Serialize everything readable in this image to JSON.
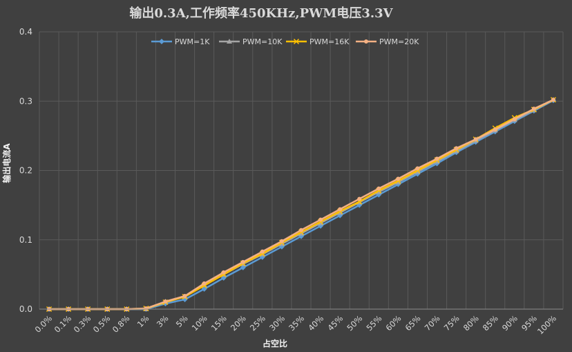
{
  "chart_data": {
    "type": "line",
    "title": "输出0.3A,工作频率450KHz,PWM电压3.3V",
    "xlabel": "占空比",
    "ylabel": "输出电流A",
    "ylim": [
      0,
      0.4
    ],
    "yticks": [
      "0.0",
      "0.1",
      "0.2",
      "0.3",
      "0.4"
    ],
    "grid": true,
    "legend_position": "top",
    "categories": [
      "0.0%",
      "0.1%",
      "0.3%",
      "0.5%",
      "0.8%",
      "1%",
      "3%",
      "5%",
      "10%",
      "15%",
      "20%",
      "25%",
      "30%",
      "35%",
      "40%",
      "45%",
      "50%",
      "55%",
      "60%",
      "65%",
      "70%",
      "75%",
      "80%",
      "85%",
      "90%",
      "95%",
      "100%"
    ],
    "series": [
      {
        "name": "PWM=1K",
        "color": "#5b9bd5",
        "marker": "diamond",
        "values": [
          0.0,
          0.0,
          0.0,
          0.0,
          0.0,
          0.0,
          0.008,
          0.014,
          0.029,
          0.045,
          0.06,
          0.075,
          0.09,
          0.105,
          0.12,
          0.135,
          0.15,
          0.165,
          0.18,
          0.195,
          0.21,
          0.226,
          0.241,
          0.256,
          0.271,
          0.286,
          0.301
        ]
      },
      {
        "name": "PWM=10K",
        "color": "#a5a5a5",
        "marker": "triangle",
        "values": [
          0.0,
          0.0,
          0.0,
          0.0,
          0.0,
          0.0,
          0.011,
          0.018,
          0.035,
          0.05,
          0.065,
          0.079,
          0.094,
          0.109,
          0.124,
          0.139,
          0.154,
          0.169,
          0.183,
          0.198,
          0.213,
          0.228,
          0.243,
          0.258,
          0.273,
          0.287,
          0.302
        ]
      },
      {
        "name": "PWM=16K",
        "color": "#ffc000",
        "marker": "x",
        "values": [
          0.0,
          0.0,
          0.0,
          0.0,
          0.0,
          0.001,
          0.01,
          0.018,
          0.034,
          0.05,
          0.066,
          0.08,
          0.096,
          0.111,
          0.126,
          0.141,
          0.155,
          0.171,
          0.185,
          0.2,
          0.215,
          0.23,
          0.245,
          0.261,
          0.276,
          0.288,
          0.302
        ]
      },
      {
        "name": "PWM=20K",
        "color": "#f4b183",
        "marker": "circle",
        "values": [
          0.0,
          0.0,
          0.0,
          0.0,
          0.0,
          0.001,
          0.011,
          0.019,
          0.037,
          0.053,
          0.068,
          0.083,
          0.098,
          0.114,
          0.129,
          0.144,
          0.159,
          0.174,
          0.188,
          0.203,
          0.217,
          0.232,
          0.245,
          0.259,
          0.274,
          0.289,
          0.302
        ]
      }
    ]
  }
}
